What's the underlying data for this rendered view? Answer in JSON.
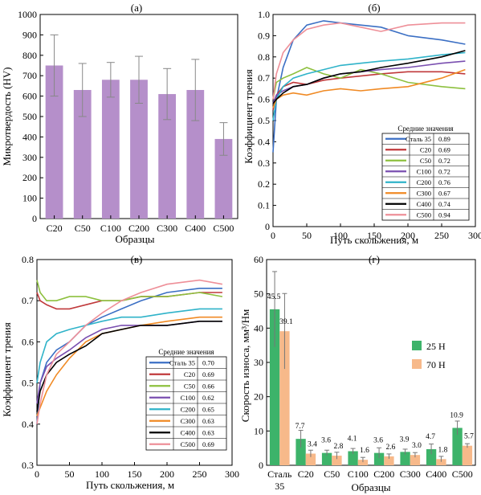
{
  "chart_data": [
    {
      "panel": "(а)",
      "type": "bar",
      "xlabel": "Образцы",
      "ylabel": "Микротвердость (HV)",
      "ylim": [
        0,
        1000
      ],
      "yticks": [
        "0",
        "100",
        "200",
        "300",
        "400",
        "500",
        "600",
        "700",
        "800",
        "900",
        "1000"
      ],
      "categories": [
        "C20",
        "C50",
        "C100",
        "C200",
        "C300",
        "C400",
        "C500"
      ],
      "values": [
        750,
        630,
        680,
        680,
        610,
        630,
        390
      ],
      "errors": [
        150,
        130,
        85,
        115,
        125,
        150,
        80
      ],
      "color": "#b58fca",
      "grid": false
    },
    {
      "panel": "(б)",
      "type": "line",
      "xlabel": "Путь скольжения, м",
      "ylabel": "Коэффициент трения",
      "xlim": [
        0,
        300
      ],
      "ylim": [
        0,
        1.0
      ],
      "xticks": [
        "0",
        "50",
        "100",
        "150",
        "200",
        "250",
        "300"
      ],
      "yticks": [
        "0",
        "0.1",
        "0.2",
        "0.3",
        "0.4",
        "0.5",
        "0.6",
        "0.7",
        "0.8",
        "0.9",
        "1.0"
      ],
      "legend_title": "Средние значения",
      "legend_position": "bottom-right",
      "series": [
        {
          "name": "Сталь 35",
          "mean": "0.89",
          "color": "#3b6fc4",
          "x": [
            0,
            5,
            15,
            30,
            50,
            75,
            100,
            130,
            160,
            200,
            250,
            285
          ],
          "y": [
            0.35,
            0.6,
            0.75,
            0.88,
            0.95,
            0.97,
            0.96,
            0.95,
            0.94,
            0.9,
            0.88,
            0.86
          ]
        },
        {
          "name": "C20",
          "mean": "0.69",
          "color": "#c0393b",
          "x": [
            0,
            5,
            15,
            30,
            50,
            75,
            100,
            130,
            160,
            200,
            250,
            285
          ],
          "y": [
            0.55,
            0.62,
            0.66,
            0.68,
            0.67,
            0.69,
            0.7,
            0.71,
            0.72,
            0.73,
            0.73,
            0.72
          ]
        },
        {
          "name": "C50",
          "mean": "0.72",
          "color": "#8dc03e",
          "x": [
            0,
            5,
            15,
            30,
            50,
            75,
            100,
            130,
            160,
            200,
            250,
            285
          ],
          "y": [
            0.6,
            0.68,
            0.7,
            0.72,
            0.75,
            0.72,
            0.7,
            0.74,
            0.72,
            0.68,
            0.66,
            0.65
          ]
        },
        {
          "name": "C100",
          "mean": "0.72",
          "color": "#7a4fb0",
          "x": [
            0,
            5,
            15,
            30,
            50,
            75,
            100,
            130,
            160,
            200,
            250,
            285
          ],
          "y": [
            0.58,
            0.62,
            0.64,
            0.66,
            0.67,
            0.7,
            0.72,
            0.73,
            0.74,
            0.75,
            0.77,
            0.78
          ]
        },
        {
          "name": "C200",
          "mean": "0.76",
          "color": "#2fb3c9",
          "x": [
            0,
            5,
            15,
            30,
            50,
            75,
            100,
            130,
            160,
            200,
            250,
            285
          ],
          "y": [
            0.5,
            0.6,
            0.66,
            0.7,
            0.72,
            0.74,
            0.76,
            0.77,
            0.78,
            0.79,
            0.81,
            0.82
          ]
        },
        {
          "name": "C300",
          "mean": "0.67",
          "color": "#f08a24",
          "x": [
            0,
            5,
            15,
            30,
            50,
            75,
            100,
            130,
            160,
            200,
            250,
            285
          ],
          "y": [
            0.56,
            0.6,
            0.62,
            0.63,
            0.62,
            0.64,
            0.65,
            0.64,
            0.65,
            0.66,
            0.7,
            0.74
          ]
        },
        {
          "name": "C400",
          "mean": "0.74",
          "color": "#000000",
          "x": [
            0,
            5,
            15,
            30,
            50,
            75,
            100,
            130,
            160,
            200,
            250,
            285
          ],
          "y": [
            0.58,
            0.6,
            0.63,
            0.66,
            0.67,
            0.7,
            0.72,
            0.73,
            0.75,
            0.77,
            0.8,
            0.83
          ]
        },
        {
          "name": "C500",
          "mean": "0.94",
          "color": "#ee8f98",
          "x": [
            0,
            5,
            15,
            30,
            50,
            75,
            100,
            130,
            160,
            200,
            250,
            285
          ],
          "y": [
            0.6,
            0.72,
            0.82,
            0.88,
            0.93,
            0.95,
            0.96,
            0.94,
            0.92,
            0.95,
            0.96,
            0.96
          ]
        }
      ]
    },
    {
      "panel": "(в)",
      "type": "line",
      "xlabel": "Путь скольжения, м",
      "ylabel": "Коэффициент трения",
      "xlim": [
        0,
        300
      ],
      "ylim": [
        0.3,
        0.8
      ],
      "xticks": [
        "0",
        "50",
        "100",
        "150",
        "200",
        "250",
        "300"
      ],
      "yticks": [
        "0.3",
        "0.4",
        "0.5",
        "0.6",
        "0.7",
        "0.8"
      ],
      "legend_title": "Средние значения",
      "legend_position": "bottom-right",
      "series": [
        {
          "name": "Сталь 35",
          "mean": "0.70",
          "color": "#3b6fc4",
          "x": [
            0,
            5,
            15,
            30,
            50,
            75,
            100,
            130,
            160,
            200,
            250,
            285
          ],
          "y": [
            0.4,
            0.5,
            0.55,
            0.58,
            0.6,
            0.64,
            0.66,
            0.68,
            0.7,
            0.72,
            0.73,
            0.73
          ]
        },
        {
          "name": "C20",
          "mean": "0.69",
          "color": "#c0393b",
          "x": [
            0,
            5,
            15,
            30,
            50,
            75,
            100,
            130,
            160,
            200,
            250,
            285
          ],
          "y": [
            0.72,
            0.7,
            0.69,
            0.68,
            0.68,
            0.69,
            0.7,
            0.7,
            0.71,
            0.71,
            0.72,
            0.72
          ]
        },
        {
          "name": "C50",
          "mean": "0.66",
          "color": "#8dc03e",
          "x": [
            0,
            5,
            15,
            30,
            50,
            75,
            100,
            130,
            160,
            200,
            250,
            285
          ],
          "y": [
            0.75,
            0.72,
            0.7,
            0.7,
            0.71,
            0.71,
            0.7,
            0.7,
            0.71,
            0.71,
            0.72,
            0.71
          ]
        },
        {
          "name": "C100",
          "mean": "0.62",
          "color": "#7a4fb0",
          "x": [
            0,
            5,
            15,
            30,
            50,
            75,
            100,
            130,
            160,
            200,
            250,
            285
          ],
          "y": [
            0.45,
            0.5,
            0.54,
            0.56,
            0.58,
            0.61,
            0.63,
            0.64,
            0.64,
            0.64,
            0.65,
            0.65
          ]
        },
        {
          "name": "C200",
          "mean": "0.65",
          "color": "#2fb3c9",
          "x": [
            0,
            5,
            15,
            30,
            50,
            75,
            100,
            130,
            160,
            200,
            250,
            285
          ],
          "y": [
            0.5,
            0.55,
            0.6,
            0.62,
            0.63,
            0.64,
            0.65,
            0.66,
            0.66,
            0.67,
            0.68,
            0.68
          ]
        },
        {
          "name": "C300",
          "mean": "0.63",
          "color": "#f08a24",
          "x": [
            0,
            5,
            15,
            30,
            50,
            75,
            100,
            130,
            160,
            200,
            250,
            285
          ],
          "y": [
            0.42,
            0.44,
            0.48,
            0.52,
            0.56,
            0.6,
            0.62,
            0.63,
            0.64,
            0.65,
            0.66,
            0.66
          ]
        },
        {
          "name": "C400",
          "mean": "0.63",
          "color": "#000000",
          "x": [
            0,
            5,
            15,
            30,
            50,
            75,
            100,
            130,
            160,
            200,
            250,
            285
          ],
          "y": [
            0.43,
            0.48,
            0.52,
            0.55,
            0.57,
            0.59,
            0.62,
            0.63,
            0.64,
            0.64,
            0.65,
            0.65
          ]
        },
        {
          "name": "C500",
          "mean": "0.69",
          "color": "#ee8f98",
          "x": [
            0,
            5,
            15,
            30,
            50,
            75,
            100,
            130,
            160,
            200,
            250,
            285
          ],
          "y": [
            0.4,
            0.45,
            0.52,
            0.57,
            0.6,
            0.64,
            0.67,
            0.7,
            0.72,
            0.74,
            0.75,
            0.74
          ]
        }
      ]
    },
    {
      "panel": "(г)",
      "type": "bar",
      "xlabel": "Образцы",
      "ylabel": "Скорость износа, мм³/Нм",
      "ylim": [
        0,
        60
      ],
      "yticks": [
        "0",
        "10",
        "20",
        "30",
        "40",
        "50",
        "60"
      ],
      "categories": [
        "Сталь 35",
        "C20",
        "C50",
        "C100",
        "C200",
        "C300",
        "C400",
        "C500"
      ],
      "category_lines": [
        [
          "Сталь",
          "35"
        ],
        [
          "C20"
        ],
        [
          "C50"
        ],
        [
          "C100"
        ],
        [
          "C200"
        ],
        [
          "C300"
        ],
        [
          "C400"
        ],
        [
          "C500"
        ]
      ],
      "legend_position": "right",
      "series": [
        {
          "name": "25 H",
          "color": "#3db36a",
          "values": [
            45.5,
            7.7,
            3.6,
            4.1,
            3.6,
            3.9,
            4.7,
            10.9
          ],
          "labels": [
            "45.5",
            "7.7",
            "3.6",
            "4.1",
            "3.6",
            "3.9",
            "4.7",
            "10.9"
          ],
          "errors": [
            11,
            2.5,
            0.8,
            0.8,
            1.5,
            0.8,
            1.5,
            2.0
          ]
        },
        {
          "name": "70 H",
          "color": "#f7b98a",
          "values": [
            39.1,
            3.4,
            2.8,
            1.6,
            2.6,
            3.0,
            1.8,
            5.7
          ],
          "labels": [
            "39.1",
            "3.4",
            "2.8",
            "1.6",
            "2.6",
            "3.0",
            "1.8",
            "5.7"
          ],
          "errors": [
            11,
            1.0,
            1.0,
            0.7,
            0.7,
            0.7,
            0.8,
            0.6
          ]
        }
      ]
    }
  ]
}
